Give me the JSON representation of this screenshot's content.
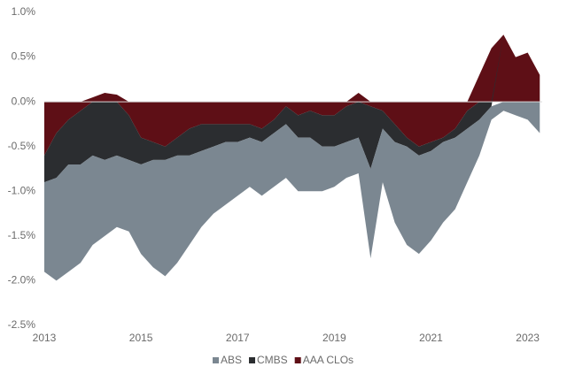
{
  "chart_data": {
    "type": "stacked_area",
    "x": [
      2013,
      2013.25,
      2013.5,
      2013.75,
      2014,
      2014.25,
      2014.5,
      2014.75,
      2015,
      2015.25,
      2015.5,
      2015.75,
      2016,
      2016.25,
      2016.5,
      2016.75,
      2017,
      2017.25,
      2017.5,
      2017.75,
      2018,
      2018.25,
      2018.5,
      2018.75,
      2019,
      2019.25,
      2019.5,
      2019.75,
      2020,
      2020.25,
      2020.5,
      2020.75,
      2021,
      2021.25,
      2021.5,
      2021.75,
      2022,
      2022.25,
      2022.5,
      2022.75,
      2023,
      2023.25
    ],
    "series": [
      {
        "name": "ABS",
        "color": "#7b8791",
        "values": [
          -1.0,
          -1.15,
          -1.2,
          -1.1,
          -1.0,
          -0.85,
          -0.8,
          -0.8,
          -1.0,
          -1.2,
          -1.3,
          -1.2,
          -1.0,
          -0.85,
          -0.75,
          -0.7,
          -0.6,
          -0.55,
          -0.6,
          -0.6,
          -0.6,
          -0.6,
          -0.6,
          -0.5,
          -0.45,
          -0.4,
          -0.4,
          -1.0,
          -0.6,
          -0.9,
          -1.1,
          -1.1,
          -1.0,
          -0.9,
          -0.8,
          -0.6,
          -0.4,
          -0.15,
          -0.1,
          -0.15,
          -0.2,
          -0.35
        ]
      },
      {
        "name": "CMBS",
        "color": "#2b2d30",
        "values": [
          -0.3,
          -0.5,
          -0.5,
          -0.6,
          -0.6,
          -0.65,
          -0.6,
          -0.5,
          -0.3,
          -0.2,
          -0.15,
          -0.2,
          -0.3,
          -0.3,
          -0.25,
          -0.2,
          -0.2,
          -0.15,
          -0.15,
          -0.15,
          -0.2,
          -0.25,
          -0.3,
          -0.35,
          -0.35,
          -0.4,
          -0.4,
          -0.7,
          -0.2,
          -0.2,
          -0.1,
          -0.1,
          -0.1,
          -0.05,
          -0.1,
          -0.2,
          -0.2,
          -0.05,
          0,
          0,
          0,
          0
        ]
      },
      {
        "name": "AAA CLOs",
        "color": "#5e0f16",
        "values": [
          -0.6,
          -0.35,
          -0.2,
          -0.1,
          0.05,
          0.1,
          0.08,
          -0.15,
          -0.4,
          -0.45,
          -0.5,
          -0.4,
          -0.3,
          -0.25,
          -0.25,
          -0.25,
          -0.25,
          -0.25,
          -0.3,
          -0.2,
          -0.05,
          -0.15,
          -0.1,
          -0.15,
          -0.15,
          -0.05,
          0.1,
          -0.05,
          -0.1,
          -0.25,
          -0.4,
          -0.5,
          -0.45,
          -0.4,
          -0.3,
          -0.1,
          0.3,
          0.6,
          0.75,
          0.5,
          0.55,
          0.3
        ]
      }
    ],
    "stack_order": [
      "AAA CLOs",
      "CMBS",
      "ABS"
    ],
    "xlim": [
      2013,
      2023.3
    ],
    "xticks": [
      2013,
      2015,
      2017,
      2019,
      2021,
      2023
    ],
    "ylim": [
      -2.5,
      1.0
    ],
    "yticks": [
      {
        "value": -2.5,
        "label": "-2.5%"
      },
      {
        "value": -2.0,
        "label": "-2.0%"
      },
      {
        "value": -1.5,
        "label": "-1.5%"
      },
      {
        "value": -1.0,
        "label": "-1.0%"
      },
      {
        "value": -0.5,
        "label": "-0.5%"
      },
      {
        "value": 0.0,
        "label": "0.0%"
      },
      {
        "value": 0.5,
        "label": "0.5%"
      },
      {
        "value": 1.0,
        "label": "1.0%"
      }
    ],
    "legend": "bottom"
  }
}
